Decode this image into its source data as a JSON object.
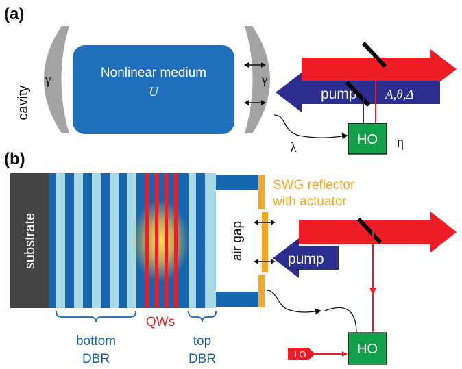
{
  "panel_a": {
    "label": "(a)",
    "cavity_label": "cavity",
    "mirror_left_symbol": "γ",
    "mirror_right_symbol": "γ",
    "medium_title": "Nonlinear medium",
    "medium_symbol": "U",
    "pump_label": "pump",
    "beam_params": "A,θ,Δ",
    "ho_label": "HO",
    "eta_symbol": "η",
    "lambda_symbol": "λ"
  },
  "panel_b": {
    "label": "(b)",
    "substrate_label": "substrate",
    "air_gap_label": "air gap",
    "swg_label_line1": "SWG reflector",
    "swg_label_line2": "with actuator",
    "pump_label": "pump",
    "qws_label": "QWs",
    "bottom_dbr_line1": "bottom",
    "bottom_dbr_line2": "DBR",
    "top_dbr_line1": "top",
    "top_dbr_line2": "DBR",
    "ho_label": "HO",
    "lo_label": "LO"
  },
  "colors": {
    "medium_blue": "#1f6fbd",
    "dbr_dark": "#1565b0",
    "dbr_light": "#a6dbe6",
    "pump_navy": "#2b2d8f",
    "beam_red": "#ee1c25",
    "ho_green": "#12a14a",
    "swg_orange": "#f7a823",
    "substrate_gray": "#444444",
    "mirror_gray": "#a3a3a3"
  }
}
